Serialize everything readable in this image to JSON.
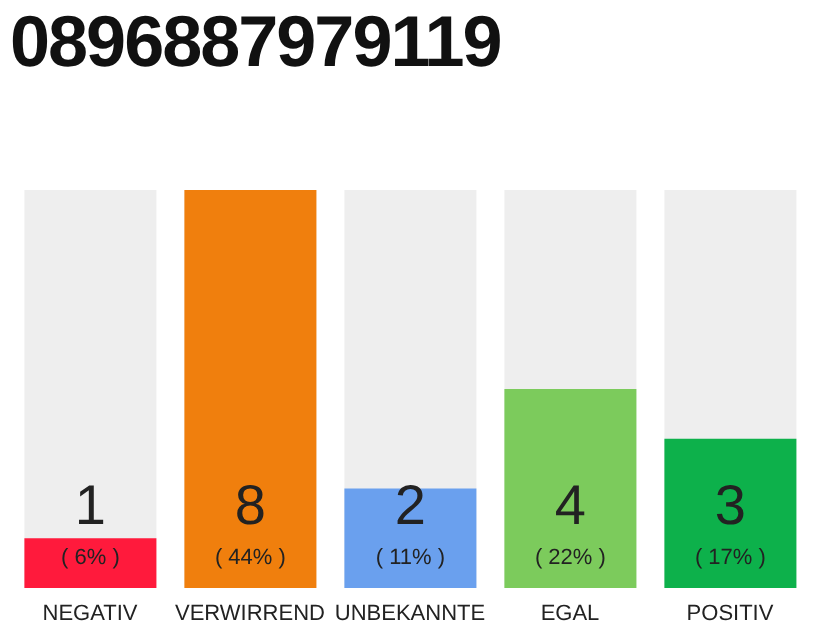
{
  "chart_data": {
    "type": "bar",
    "title": "0896887979119",
    "categories": [
      "NEGATIV",
      "VERWIRREND",
      "UNBEKANNTE",
      "EGAL",
      "POSITIV"
    ],
    "values": [
      1,
      8,
      2,
      4,
      3
    ],
    "colors": [
      "#ff1a3c",
      "#f07f0d",
      "#6aa0ee",
      "#7ccb5c",
      "#0db14b"
    ],
    "data_labels": true,
    "annotations": [
      "( 6% )",
      "( 44% )",
      "( 11% )",
      "( 22% )",
      "( 17% )"
    ],
    "grid": false,
    "legend": false
  }
}
